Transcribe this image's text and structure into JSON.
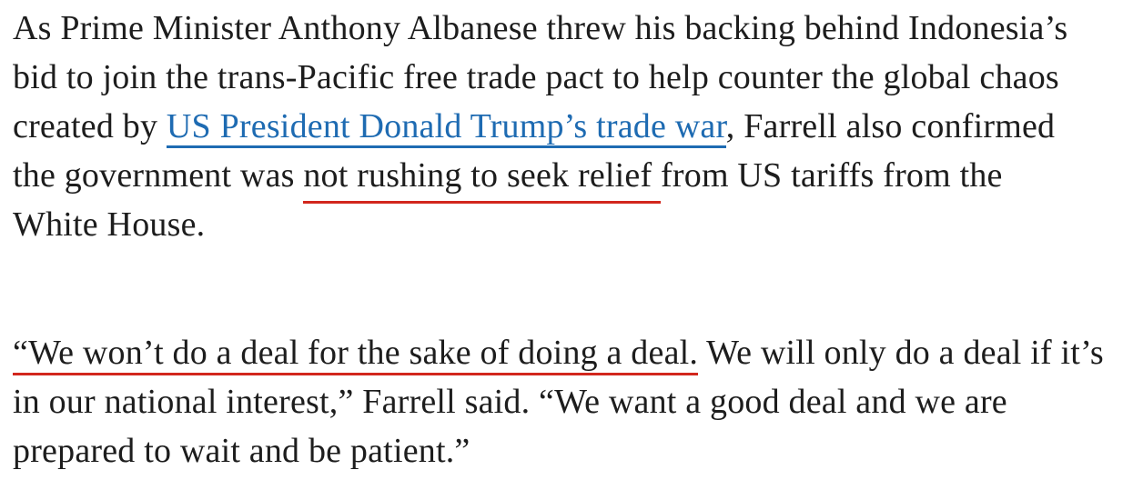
{
  "page": {
    "background_color": "#ffffff",
    "text_color": "#1d1d1d",
    "link_color": "#1e6bb2",
    "annotation_color": "#d2271d"
  },
  "article": {
    "paragraph1": {
      "line1": "As Prime Minister Anthony Albanese threw his backing behind Indonesia’s",
      "line2": "bid to join the trans-Pacific free trade pact to help counter the global chaos",
      "line3_before_link": "created by ",
      "line3_link": "US President Donald Trump’s trade war",
      "line3_after_link": ", Farrell also confirmed",
      "line4_before_mark": "the government was ",
      "line4_marked": "not rushing to seek relief ",
      "line4_after_mark": "from US tariffs from the",
      "line5": "White House."
    },
    "paragraph2": {
      "line1_marked": "“We won’t do a deal for the sake of doing a deal.",
      "line1_after_mark": " We will only do a deal if it’s",
      "line2": "in our national interest,” Farrell said. “We want a good deal and we are",
      "line3": "prepared to wait and be patient.”"
    }
  }
}
